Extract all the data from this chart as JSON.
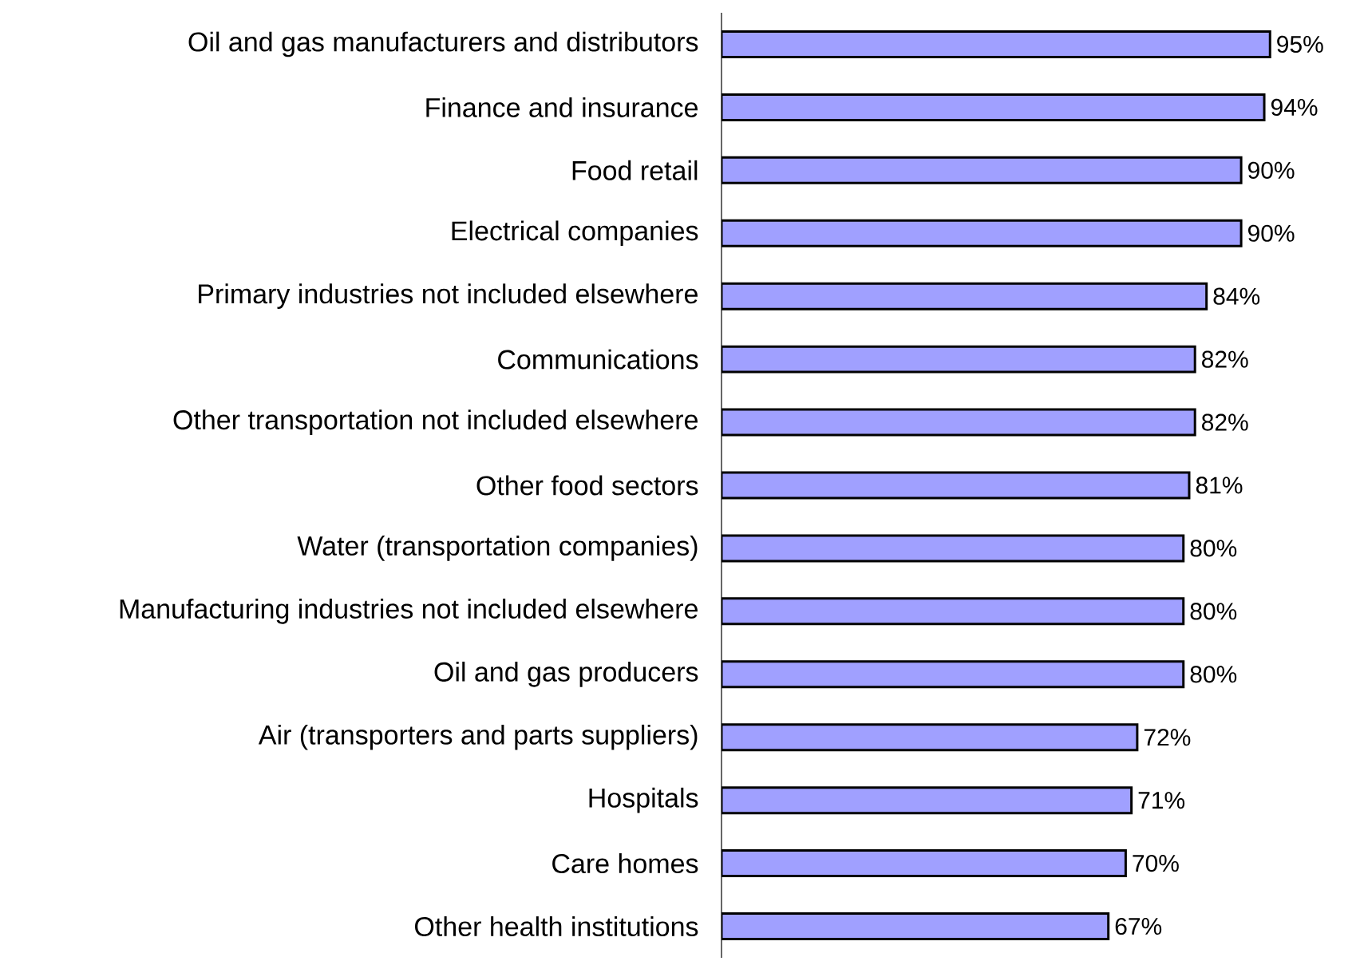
{
  "chart_data": {
    "type": "bar",
    "orientation": "horizontal",
    "categories": [
      "Oil and gas manufacturers and distributors",
      "Finance and insurance",
      "Food retail",
      "Electrical companies",
      "Primary industries not included elsewhere",
      "Communications",
      "Other transportation not included elsewhere",
      "Other food sectors",
      "Water (transportation companies)",
      "Manufacturing industries not included elsewhere",
      "Oil and gas producers",
      "Air (transporters and parts suppliers)",
      "Hospitals",
      "Care homes",
      "Other health institutions"
    ],
    "values": [
      95,
      94,
      90,
      90,
      84,
      82,
      82,
      81,
      80,
      80,
      80,
      72,
      71,
      70,
      67
    ],
    "value_labels": [
      "95%",
      "94%",
      "90%",
      "90%",
      "84%",
      "82%",
      "82%",
      "81%",
      "80%",
      "80%",
      "80%",
      "72%",
      "71%",
      "70%",
      "67%"
    ],
    "color": "#a0a0ff"
  }
}
